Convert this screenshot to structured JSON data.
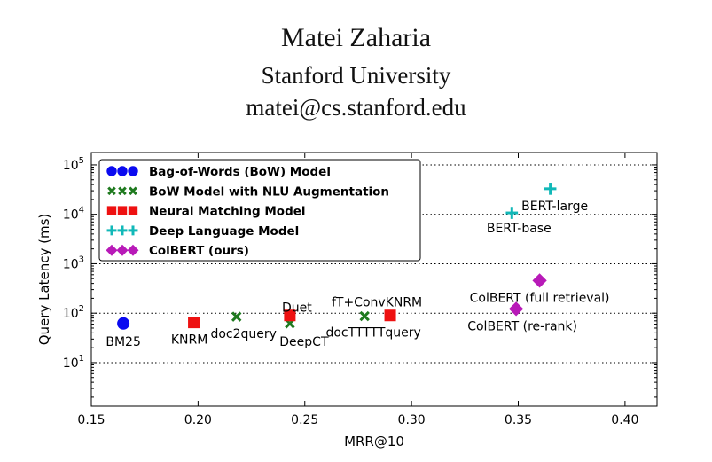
{
  "header": {
    "name": "Matei Zaharia",
    "affiliation": "Stanford University",
    "email": "matei@cs.stanford.edu"
  },
  "chart_data": {
    "type": "scatter",
    "xlabel": "MRR@10",
    "ylabel": "Query Latency (ms)",
    "xlim": [
      0.15,
      0.415
    ],
    "ylim": [
      1,
      100000
    ],
    "yscale": "log",
    "x_ticks": [
      0.15,
      0.2,
      0.25,
      0.3,
      0.35,
      0.4
    ],
    "x_tick_labels": [
      "0.15",
      "0.20",
      "0.25",
      "0.30",
      "0.35",
      "0.40"
    ],
    "y_ticks": [
      10,
      100,
      1000,
      10000,
      100000
    ],
    "y_tick_labels": [
      {
        "base": "10",
        "exp": "1"
      },
      {
        "base": "10",
        "exp": "2"
      },
      {
        "base": "10",
        "exp": "3"
      },
      {
        "base": "10",
        "exp": "4"
      },
      {
        "base": "10",
        "exp": "5"
      }
    ],
    "grid": "horizontal dotted",
    "legend_position": "top-left",
    "series": [
      {
        "name": "Bag-of-Words (BoW) Model",
        "marker": "circle",
        "color": "#0a0af0",
        "points": [
          {
            "label": "BM25",
            "x": 0.165,
            "y": 62
          }
        ]
      },
      {
        "name": "BoW Model with NLU Augmentation",
        "marker": "x",
        "color": "#1f7a1f",
        "points": [
          {
            "label": "doc2query",
            "x": 0.218,
            "y": 85
          },
          {
            "label": "DeepCT",
            "x": 0.243,
            "y": 62
          },
          {
            "label": "docTTTTTquery",
            "x": 0.278,
            "y": 87
          }
        ]
      },
      {
        "name": "Neural Matching Model",
        "marker": "square",
        "color": "#ee1111",
        "points": [
          {
            "label": "KNRM",
            "x": 0.198,
            "y": 65
          },
          {
            "label": "Duet",
            "x": 0.243,
            "y": 90
          },
          {
            "label": "fT+ConvKNRM",
            "x": 0.29,
            "y": 90
          }
        ]
      },
      {
        "name": "Deep Language Model",
        "marker": "plus",
        "color": "#11b8b8",
        "points": [
          {
            "label": "BERT-base",
            "x": 0.347,
            "y": 10700
          },
          {
            "label": "BERT-large",
            "x": 0.365,
            "y": 32900
          }
        ]
      },
      {
        "name": "ColBERT (ours)",
        "marker": "diamond",
        "color": "#b81ab8",
        "points": [
          {
            "label": "ColBERT (re-rank)",
            "x": 0.349,
            "y": 122
          },
          {
            "label": "ColBERT (full retrieval)",
            "x": 0.36,
            "y": 458
          }
        ]
      }
    ]
  }
}
